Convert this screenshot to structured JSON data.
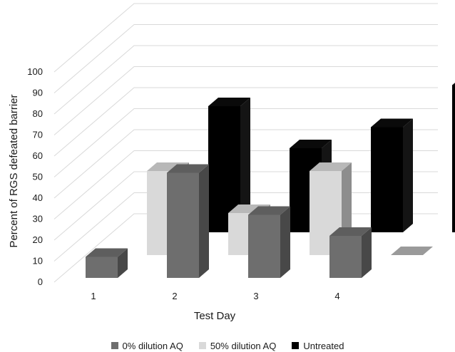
{
  "chart_data": {
    "type": "bar",
    "title": "",
    "xlabel": "Test Day",
    "ylabel": "Percent of RGS defeated barrier",
    "categories": [
      "1",
      "2",
      "3",
      "4"
    ],
    "ylim": [
      0,
      100
    ],
    "yticks": [
      "0",
      "10",
      "20",
      "30",
      "40",
      "50",
      "60",
      "70",
      "80",
      "90",
      "100"
    ],
    "grid": true,
    "legend_position": "bottom",
    "series": [
      {
        "name": "0% dilution AQ",
        "color": "#6e6e6e",
        "values": [
          10,
          50,
          30,
          20
        ]
      },
      {
        "name": "50% dilution AQ",
        "color": "#d9d9d9",
        "values": [
          40,
          20,
          40,
          0
        ]
      },
      {
        "name": "Untreated",
        "color": "#000000",
        "values": [
          60,
          40,
          50,
          70
        ]
      }
    ]
  }
}
